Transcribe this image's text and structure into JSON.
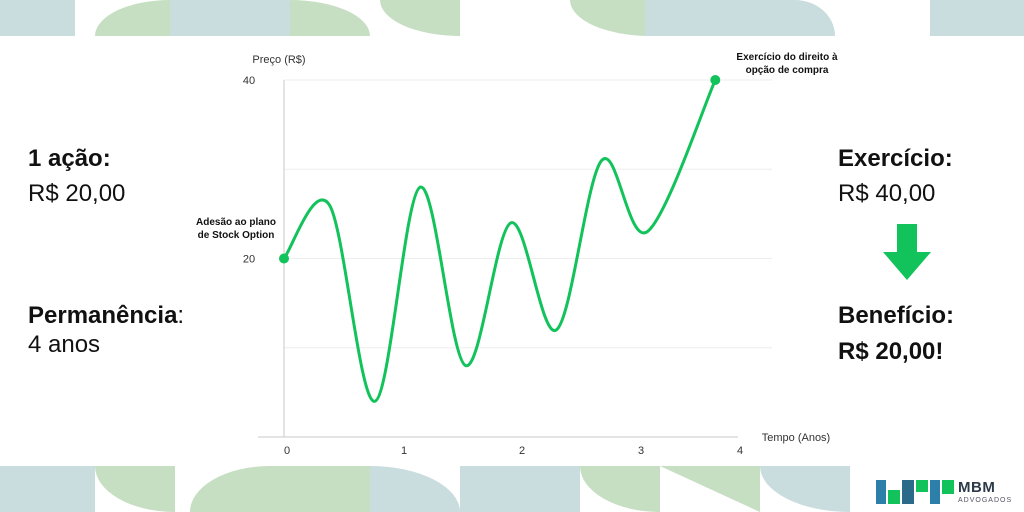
{
  "left_panel": {
    "share_label": "1 ação:",
    "share_value": "R$ 20,00",
    "stay_label": "Permanência",
    "stay_colon": ":",
    "stay_value": "4 anos"
  },
  "right_panel": {
    "exercise_label": "Exercício:",
    "exercise_value": "R$ 40,00",
    "benefit_label": "Benefício:",
    "benefit_value": "R$ 20,00!",
    "arrow_icon": "arrow-down-icon",
    "arrow_color": "#12c25a"
  },
  "logo": {
    "name": "MBM",
    "sub": "ADVOGADOS",
    "icon": "mbm-logo-icon"
  },
  "colors": {
    "line": "#12c25a",
    "deco_green": "#c6dfc2",
    "deco_blue": "#c9dcde"
  },
  "chart_data": {
    "type": "line",
    "xlabel": "Tempo (Anos)",
    "ylabel": "Preço (R$)",
    "xlim": [
      0,
      4
    ],
    "ylim": [
      0,
      40
    ],
    "xticks": [
      "0",
      "1",
      "2",
      "3",
      "4"
    ],
    "yticks": [
      "20",
      "40"
    ],
    "grid": true,
    "annotations": [
      {
        "lines": [
          "Adesão ao plano",
          "de Stock Option"
        ],
        "x": 0,
        "y": 20
      },
      {
        "lines": [
          "Exercício do direito à",
          "opção de compra"
        ],
        "x": 3.8,
        "y": 40
      }
    ],
    "series": [
      {
        "x": [
          0,
          0.4,
          0.8,
          1.2,
          1.6,
          2.0,
          2.4,
          2.8,
          3.2,
          3.8
        ],
        "y": [
          20,
          26,
          4,
          28,
          8,
          24,
          12,
          31,
          23,
          40
        ]
      }
    ]
  }
}
